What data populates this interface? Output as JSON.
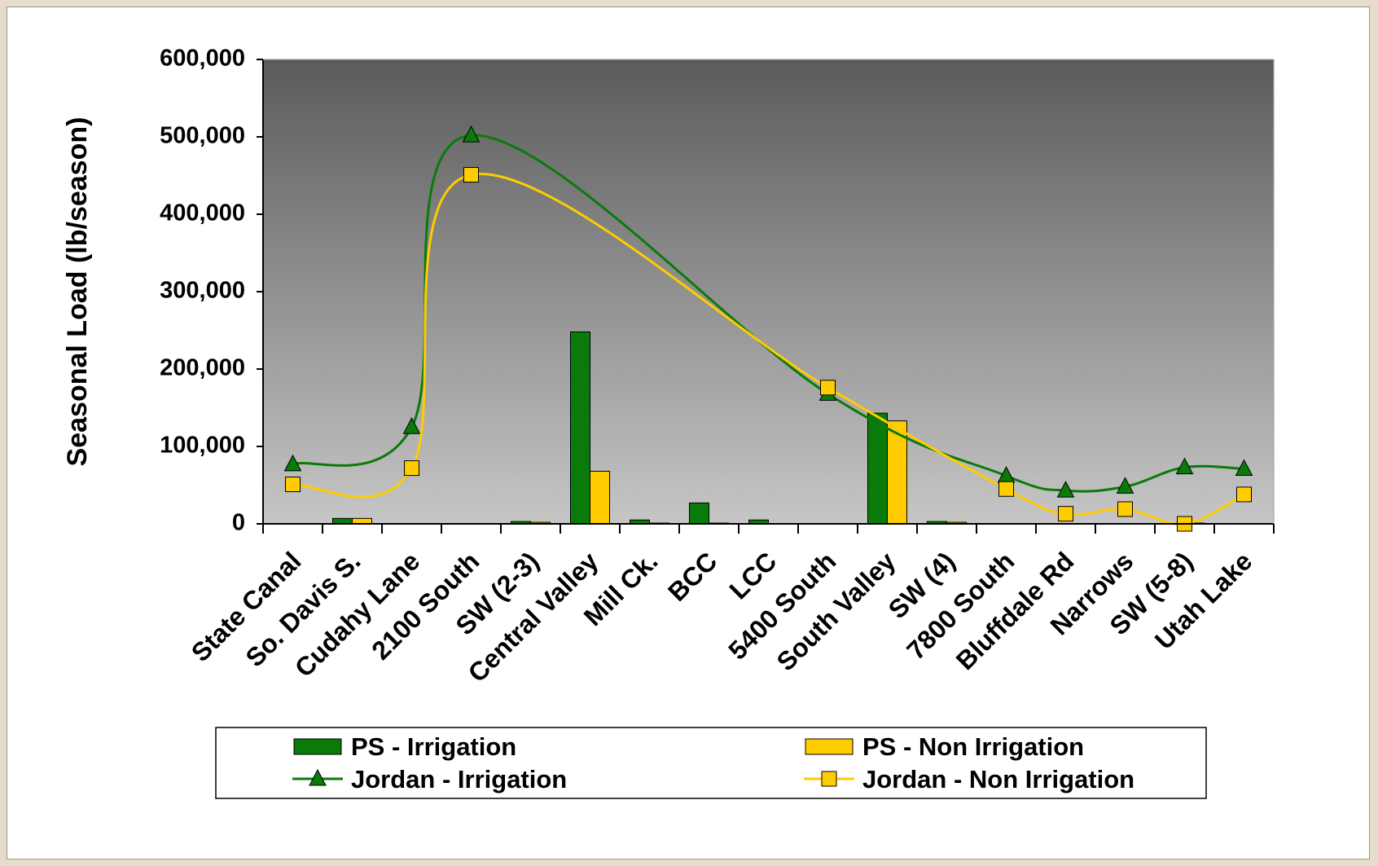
{
  "chart_data": {
    "type": "bar",
    "title": "",
    "xlabel": "",
    "ylabel": "Seasonal Load (lb/season)",
    "ylim": [
      0,
      600000
    ],
    "yticks": [
      0,
      100000,
      200000,
      300000,
      400000,
      500000,
      600000
    ],
    "ytick_labels": [
      "0",
      "100,000",
      "200,000",
      "300,000",
      "400,000",
      "500,000",
      "600,000"
    ],
    "grid": false,
    "legend_position": "bottom",
    "categories": [
      "State Canal",
      "So. Davis S.",
      "Cudahy Lane",
      "2100 South",
      "SW (2-3)",
      "Central Valley",
      "Mill Ck.",
      "BCC",
      "LCC",
      "5400 South",
      "South Valley",
      "SW (4)",
      "7800 South",
      "Bluffdale Rd",
      "Narrows",
      "SW (5-8)",
      "Utah Lake"
    ],
    "series": [
      {
        "name": "PS - Irrigation",
        "type": "bar",
        "color": "#0a7a0a",
        "values": [
          0,
          7000,
          0,
          0,
          3000,
          248000,
          5000,
          27000,
          5000,
          0,
          143000,
          3000,
          0,
          0,
          0,
          1000,
          0
        ]
      },
      {
        "name": "PS - Non Irrigation",
        "type": "bar",
        "color": "#ffcc00",
        "values": [
          0,
          7000,
          0,
          0,
          2000,
          68000,
          1000,
          1000,
          0,
          0,
          133000,
          2000,
          0,
          0,
          0,
          1000,
          0
        ]
      },
      {
        "name": "Jordan - Irrigation",
        "type": "line",
        "marker": "triangle",
        "color": "#0a7a0a",
        "x": [
          "State Canal",
          "Cudahy Lane",
          "2100 South",
          "5400 South",
          "7800 South",
          "Bluffdale Rd",
          "Narrows",
          "SW (5-8)",
          "Utah Lake"
        ],
        "values": [
          77000,
          125000,
          502000,
          168000,
          62000,
          43000,
          48000,
          73000,
          71000
        ]
      },
      {
        "name": "Jordan - Non Irrigation",
        "type": "line",
        "marker": "square",
        "color": "#ffcc00",
        "x": [
          "State Canal",
          "Cudahy Lane",
          "2100 South",
          "5400 South",
          "7800 South",
          "Bluffdale Rd",
          "Narrows",
          "SW (5-8)",
          "Utah Lake"
        ],
        "values": [
          51000,
          72000,
          451000,
          176000,
          45000,
          13000,
          19000,
          0,
          38000
        ]
      }
    ]
  }
}
